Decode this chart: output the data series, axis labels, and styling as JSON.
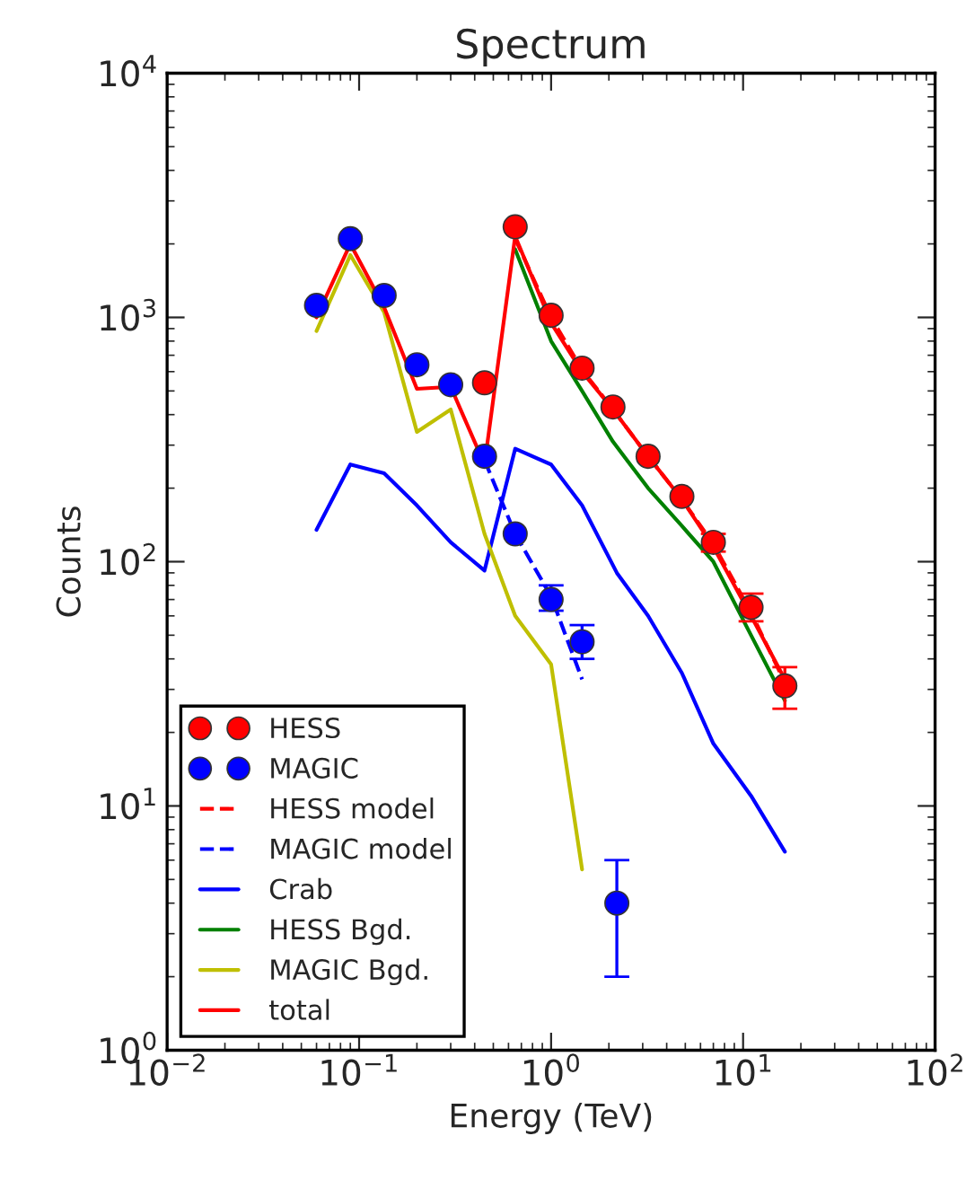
{
  "chart_data": {
    "type": "scatter",
    "title": "Spectrum",
    "xlabel": "Energy (TeV)",
    "ylabel": "Counts",
    "log": "xy",
    "xlim": [
      0.01,
      100
    ],
    "ylim": [
      1,
      10000
    ],
    "xticks": [
      {
        "value": 0.01,
        "label": "10$^{−2}$"
      },
      {
        "value": 0.1,
        "label": "10$^{−1}$"
      },
      {
        "value": 1,
        "label": "10$^{0}$"
      },
      {
        "value": 10,
        "label": "10$^{1}$"
      },
      {
        "value": 100,
        "label": "10$^{2}$"
      }
    ],
    "yticks": [
      {
        "value": 1,
        "label": "10$^{0}$"
      },
      {
        "value": 10,
        "label": "10$^{1}$"
      },
      {
        "value": 100,
        "label": "10$^{2}$"
      },
      {
        "value": 1000,
        "label": "10$^{3}$"
      },
      {
        "value": 10000,
        "label": "10$^{4}$"
      }
    ],
    "legend": "bottom left",
    "grid": false,
    "series": [
      {
        "name": "HESS",
        "color": "#ff0000",
        "marker": "circle",
        "x": [
          0.45,
          0.65,
          1.0,
          1.45,
          2.1,
          3.2,
          4.8,
          7.0,
          11,
          16.5
        ],
        "values": [
          540,
          2350,
          1020,
          620,
          430,
          270,
          185,
          120,
          65,
          31
        ],
        "errors": [
          null,
          null,
          null,
          null,
          null,
          null,
          null,
          [
            110,
            130
          ],
          [
            57,
            74
          ],
          [
            25,
            37
          ]
        ]
      },
      {
        "name": "MAGIC",
        "color": "#0000ff",
        "marker": "circle",
        "x": [
          0.06,
          0.09,
          0.135,
          0.2,
          0.3,
          0.45,
          0.65,
          1.0,
          1.45,
          2.2
        ],
        "values": [
          1120,
          2100,
          1230,
          640,
          530,
          270,
          130,
          70,
          47,
          4
        ],
        "errors": [
          null,
          null,
          null,
          null,
          null,
          null,
          null,
          [
            63,
            80
          ],
          [
            40,
            55
          ],
          [
            2,
            6
          ]
        ]
      },
      {
        "name": "HESS model",
        "type": "line",
        "color": "#ff0000",
        "line_style": "dashed",
        "x": [
          0.65,
          1.0,
          1.45,
          2.1,
          3.2,
          4.8,
          7.0,
          11,
          16.5
        ],
        "values": [
          2100,
          1000,
          610,
          420,
          270,
          180,
          118,
          62,
          32
        ]
      },
      {
        "name": "MAGIC model",
        "type": "line",
        "color": "#0000ff",
        "line_style": "dashed",
        "x": [
          0.45,
          0.65,
          1.0,
          1.45
        ],
        "values": [
          260,
          130,
          72,
          33
        ]
      },
      {
        "name": "Crab",
        "type": "line",
        "color": "#0000ff",
        "line_style": "solid",
        "x": [
          0.06,
          0.09,
          0.135,
          0.2,
          0.3,
          0.45,
          0.65,
          1.0,
          1.45,
          2.2,
          3.2,
          4.8,
          7.0,
          11,
          16.5
        ],
        "values": [
          135,
          250,
          230,
          170,
          120,
          92,
          290,
          250,
          170,
          90,
          60,
          35,
          18,
          11,
          6.5
        ]
      },
      {
        "name": "HESS Bgd.",
        "type": "line",
        "color": "#008000",
        "line_style": "solid",
        "x": [
          0.65,
          1.0,
          1.45,
          2.1,
          3.2,
          4.8,
          7.0,
          11,
          16.5
        ],
        "values": [
          1900,
          800,
          500,
          310,
          200,
          140,
          100,
          50,
          27
        ]
      },
      {
        "name": "MAGIC Bgd.",
        "type": "line",
        "color": "#bfbf00",
        "line_style": "solid",
        "x": [
          0.06,
          0.09,
          0.135,
          0.2,
          0.3,
          0.45,
          0.65,
          1.0,
          1.45
        ],
        "values": [
          880,
          1800,
          1050,
          340,
          420,
          130,
          60,
          38,
          5.5
        ]
      },
      {
        "name": "total",
        "type": "line",
        "color": "#ff0000",
        "line_style": "solid",
        "x": [
          0.06,
          0.09,
          0.135,
          0.2,
          0.3,
          0.45,
          0.65,
          1.0,
          1.45,
          2.1,
          3.2,
          4.8,
          7.0,
          11,
          16.5
        ],
        "values": [
          1000,
          2000,
          1100,
          510,
          520,
          250,
          2150,
          950,
          600,
          420,
          270,
          180,
          115,
          60,
          33
        ]
      }
    ]
  }
}
